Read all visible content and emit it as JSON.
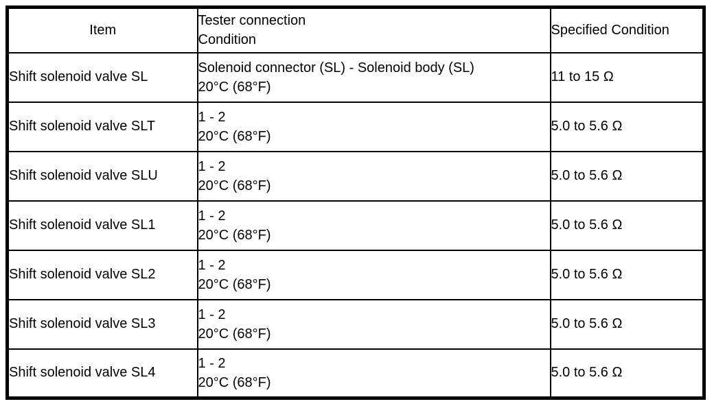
{
  "table": {
    "header": {
      "item": "Item",
      "tester_connection": "Tester connection",
      "condition": "Condition",
      "specified_condition": "Specified Condition"
    },
    "rows": [
      {
        "item": "Shift solenoid valve SL",
        "connection": "Solenoid connector (SL) - Solenoid body (SL)",
        "condition": "20°C (68°F)",
        "specified": "11 to 15 Ω"
      },
      {
        "item": "Shift solenoid valve SLT",
        "connection": "1 - 2",
        "condition": "20°C (68°F)",
        "specified": "5.0 to 5.6 Ω"
      },
      {
        "item": "Shift solenoid valve SLU",
        "connection": "1 - 2",
        "condition": "20°C (68°F)",
        "specified": "5.0 to 5.6 Ω"
      },
      {
        "item": "Shift solenoid valve SL1",
        "connection": "1 - 2",
        "condition": "20°C (68°F)",
        "specified": "5.0 to 5.6 Ω"
      },
      {
        "item": "Shift solenoid valve SL2",
        "connection": "1 - 2",
        "condition": "20°C (68°F)",
        "specified": "5.0 to 5.6 Ω"
      },
      {
        "item": "Shift solenoid valve SL3",
        "connection": "1 - 2",
        "condition": "20°C (68°F)",
        "specified": "5.0 to 5.6 Ω"
      },
      {
        "item": "Shift solenoid valve SL4",
        "connection": "1 - 2",
        "condition": "20°C (68°F)",
        "specified": "5.0 to 5.6 Ω"
      }
    ]
  }
}
